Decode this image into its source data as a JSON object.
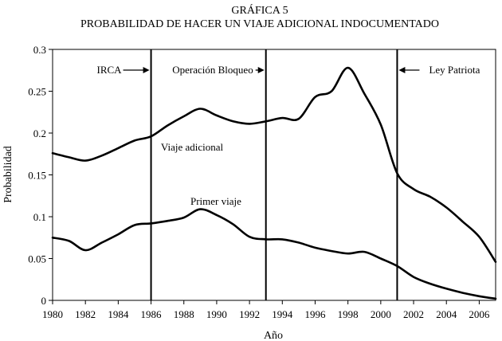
{
  "chart_data": {
    "type": "line",
    "title": "GRÁFICA 5",
    "subtitle": "PROBABILIDAD DE HACER UN VIAJE ADICIONAL INDOCUMENTADO",
    "xlabel": "Año",
    "ylabel": "Probabilidad",
    "xlim": [
      1980,
      2007
    ],
    "ylim": [
      0,
      0.3
    ],
    "x_ticks": [
      "1980",
      "1982",
      "1984",
      "1986",
      "1988",
      "1990",
      "1992",
      "1994",
      "1996",
      "1998",
      "2000",
      "2002",
      "2004",
      "2006"
    ],
    "y_ticks": [
      "0",
      "0.05",
      "0.1",
      "0.15",
      "0.2",
      "0.25",
      "0.3"
    ],
    "series": [
      {
        "name": "Viaje adicional",
        "x": [
          1980,
          1981,
          1982,
          1983,
          1984,
          1985,
          1986,
          1987,
          1988,
          1989,
          1990,
          1991,
          1992,
          1993,
          1994,
          1995,
          1996,
          1997,
          1998,
          1999,
          2000,
          2001,
          2002,
          2003,
          2004,
          2005,
          2006,
          2007
        ],
        "values": [
          0.176,
          0.171,
          0.167,
          0.173,
          0.182,
          0.191,
          0.196,
          0.209,
          0.22,
          0.229,
          0.221,
          0.214,
          0.211,
          0.214,
          0.218,
          0.217,
          0.243,
          0.25,
          0.278,
          0.247,
          0.21,
          0.152,
          0.133,
          0.124,
          0.111,
          0.094,
          0.076,
          0.046
        ]
      },
      {
        "name": "Primer viaje",
        "x": [
          1980,
          1981,
          1982,
          1983,
          1984,
          1985,
          1986,
          1987,
          1988,
          1989,
          1990,
          1991,
          1992,
          1993,
          1994,
          1995,
          1996,
          1997,
          1998,
          1999,
          2000,
          2001,
          2002,
          2003,
          2004,
          2005,
          2006,
          2007
        ],
        "values": [
          0.075,
          0.071,
          0.06,
          0.069,
          0.079,
          0.09,
          0.092,
          0.095,
          0.099,
          0.109,
          0.102,
          0.091,
          0.076,
          0.073,
          0.073,
          0.069,
          0.063,
          0.059,
          0.056,
          0.058,
          0.05,
          0.041,
          0.028,
          0.02,
          0.014,
          0.009,
          0.005,
          0.002
        ]
      }
    ],
    "reference_lines": [
      {
        "x": 1986,
        "label": "IRCA",
        "arrow": "right",
        "side": "left"
      },
      {
        "x": 1993,
        "label": "Operación Bloqueo",
        "arrow": "right",
        "side": "left"
      },
      {
        "x": 2001,
        "label": "Ley Patriota",
        "arrow": "left",
        "side": "right"
      }
    ],
    "series_labels": [
      {
        "text": "Viaje adicional",
        "x": 1986.6,
        "y": 0.183
      },
      {
        "text": "Primer viaje",
        "x": 1988.4,
        "y": 0.118
      }
    ],
    "grid": false
  }
}
